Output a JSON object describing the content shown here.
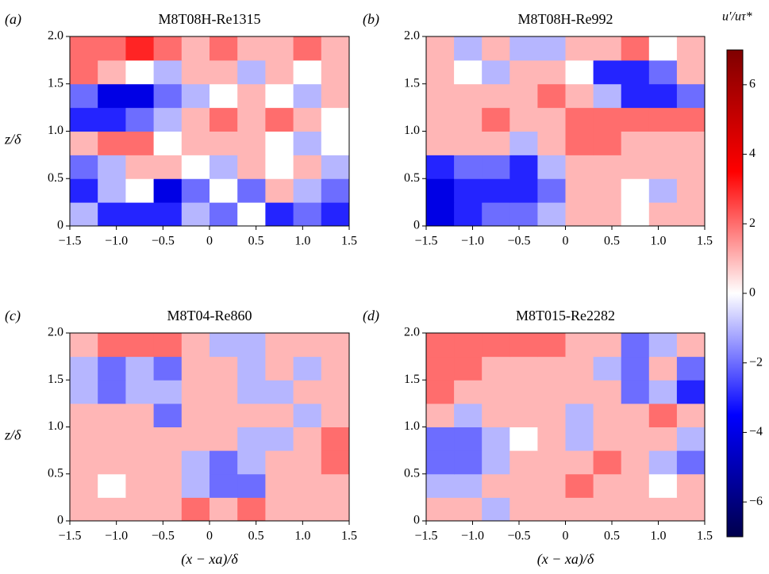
{
  "chart_data": [
    {
      "type": "heatmap",
      "panel": "(a)",
      "title": "M8T08H-Re1315",
      "ylabel": "z/δ",
      "x": [
        -1.35,
        -1.05,
        -0.75,
        -0.45,
        -0.15,
        0.15,
        0.45,
        0.75,
        1.05,
        1.35
      ],
      "y": [
        0.125,
        0.375,
        0.625,
        0.875,
        1.125,
        1.375,
        1.625,
        1.875
      ],
      "z": [
        [
          -1,
          -3,
          -3,
          -3,
          -1,
          -2,
          0,
          -3,
          -2,
          -3
        ],
        [
          -3,
          -1,
          0,
          -4,
          -2,
          0,
          -2,
          1,
          -1,
          -2
        ],
        [
          -2,
          -1,
          1,
          1,
          0,
          -1,
          1,
          0,
          1,
          -1
        ],
        [
          1,
          2,
          2,
          0,
          1,
          1,
          1,
          0,
          -1,
          0
        ],
        [
          -3,
          -3,
          -2,
          -1,
          1,
          2,
          1,
          2,
          1,
          0
        ],
        [
          -2,
          -4,
          -4,
          -2,
          -1,
          0,
          1,
          0,
          -1,
          1
        ],
        [
          2,
          1,
          0,
          -1,
          1,
          1,
          -1,
          1,
          0,
          1
        ],
        [
          2,
          2,
          3,
          2,
          1,
          2,
          1,
          1,
          2,
          1
        ]
      ],
      "xlim": [
        -1.5,
        1.5
      ],
      "ylim": [
        0,
        2
      ],
      "xticks": [
        {
          "value": -1.5,
          "label": "−1.5"
        },
        {
          "value": -1,
          "label": "−1.0"
        },
        {
          "value": -0.5,
          "label": "−0.5"
        },
        0,
        0.5,
        {
          "value": 1,
          "label": "1.0"
        },
        1.5
      ],
      "yticks": [
        0,
        0.5,
        {
          "value": 1,
          "label": "1.0"
        },
        1.5,
        {
          "value": 2,
          "label": "2.0"
        }
      ]
    },
    {
      "type": "heatmap",
      "panel": "(b)",
      "title": "M8T08H-Re992",
      "x": [
        -1.35,
        -1.05,
        -0.75,
        -0.45,
        -0.15,
        0.15,
        0.45,
        0.75,
        1.05,
        1.35
      ],
      "y": [
        0.125,
        0.375,
        0.625,
        0.875,
        1.125,
        1.375,
        1.625,
        1.875
      ],
      "z": [
        [
          -4,
          -3,
          -2,
          -2,
          -1,
          1,
          1,
          0,
          1,
          1
        ],
        [
          -4,
          -3,
          -3,
          -3,
          -2,
          1,
          1,
          0,
          -1,
          1
        ],
        [
          -3,
          -2,
          -2,
          -3,
          -1,
          1,
          1,
          1,
          1,
          1
        ],
        [
          1,
          1,
          1,
          -1,
          1,
          2,
          2,
          1,
          1,
          1
        ],
        [
          1,
          1,
          2,
          1,
          1,
          2,
          2,
          2,
          2,
          2
        ],
        [
          1,
          1,
          1,
          1,
          2,
          1,
          -1,
          -3,
          -3,
          -2
        ],
        [
          1,
          0,
          -1,
          1,
          1,
          0,
          -3,
          -3,
          -2,
          1
        ],
        [
          1,
          -1,
          1,
          -1,
          -1,
          1,
          1,
          2,
          0,
          1
        ]
      ],
      "xlim": [
        -1.5,
        1.5
      ],
      "ylim": [
        0,
        2
      ],
      "xticks": [
        {
          "value": -1.5,
          "label": "−1.5"
        },
        {
          "value": -1,
          "label": "−1.0"
        },
        {
          "value": -0.5,
          "label": "−0.5"
        },
        0,
        0.5,
        {
          "value": 1,
          "label": "1.0"
        },
        1.5
      ],
      "yticks": [
        0,
        0.5,
        {
          "value": 1,
          "label": "1.0"
        },
        1.5,
        {
          "value": 2,
          "label": "2.0"
        }
      ]
    },
    {
      "type": "heatmap",
      "panel": "(c)",
      "title": "M8T04-Re860",
      "ylabel": "z/δ",
      "xlabel": "(x − xa)/δ",
      "x": [
        -1.35,
        -1.05,
        -0.75,
        -0.45,
        -0.15,
        0.15,
        0.45,
        0.75,
        1.05,
        1.35
      ],
      "y": [
        0.125,
        0.375,
        0.625,
        0.875,
        1.125,
        1.375,
        1.625,
        1.875
      ],
      "z": [
        [
          1,
          1,
          1,
          1,
          2,
          1,
          2,
          1,
          1,
          1
        ],
        [
          1,
          0,
          1,
          1,
          -1,
          -2,
          -2,
          1,
          1,
          1
        ],
        [
          1,
          1,
          1,
          1,
          -1,
          -2,
          -1,
          1,
          1,
          2
        ],
        [
          1,
          1,
          1,
          1,
          1,
          1,
          -1,
          -1,
          1,
          2
        ],
        [
          1,
          1,
          1,
          -2,
          1,
          1,
          1,
          1,
          -1,
          1
        ],
        [
          -1,
          -2,
          -1,
          -1,
          1,
          1,
          -1,
          -1,
          1,
          1
        ],
        [
          -1,
          -2,
          -1,
          -2,
          1,
          1,
          -1,
          1,
          -1,
          1
        ],
        [
          1,
          2,
          2,
          2,
          1,
          -1,
          -1,
          1,
          1,
          1
        ]
      ],
      "xlim": [
        -1.5,
        1.5
      ],
      "ylim": [
        0,
        2
      ],
      "xticks": [
        {
          "value": -1.5,
          "label": "−1.5"
        },
        {
          "value": -1,
          "label": "−1.0"
        },
        {
          "value": -0.5,
          "label": "−0.5"
        },
        0,
        0.5,
        {
          "value": 1,
          "label": "1.0"
        },
        1.5
      ],
      "yticks": [
        0,
        0.5,
        {
          "value": 1,
          "label": "1.0"
        },
        1.5,
        {
          "value": 2,
          "label": "2.0"
        }
      ]
    },
    {
      "type": "heatmap",
      "panel": "(d)",
      "title": "M8T015-Re2282",
      "xlabel": "(x − xa)/δ",
      "x": [
        -1.35,
        -1.05,
        -0.75,
        -0.45,
        -0.15,
        0.15,
        0.45,
        0.75,
        1.05,
        1.35
      ],
      "y": [
        0.125,
        0.375,
        0.625,
        0.875,
        1.125,
        1.375,
        1.625,
        1.875
      ],
      "z": [
        [
          1,
          1,
          -1,
          1,
          1,
          1,
          1,
          1,
          1,
          1
        ],
        [
          -1,
          -1,
          1,
          1,
          1,
          2,
          1,
          1,
          0,
          1
        ],
        [
          -2,
          -2,
          -1,
          1,
          1,
          1,
          2,
          1,
          -1,
          -2
        ],
        [
          -2,
          -2,
          -1,
          0,
          1,
          -1,
          1,
          1,
          1,
          -1
        ],
        [
          1,
          -1,
          1,
          1,
          1,
          -1,
          1,
          1,
          2,
          1
        ],
        [
          2,
          1,
          1,
          1,
          1,
          1,
          1,
          -2,
          -1,
          -3
        ],
        [
          2,
          2,
          1,
          1,
          1,
          1,
          -1,
          -2,
          1,
          -2
        ],
        [
          2,
          2,
          2,
          2,
          2,
          1,
          1,
          -2,
          -1,
          1
        ]
      ],
      "xlim": [
        -1.5,
        1.5
      ],
      "ylim": [
        0,
        2
      ],
      "xticks": [
        {
          "value": -1.5,
          "label": "−1.5"
        },
        {
          "value": -1,
          "label": "−1.0"
        },
        {
          "value": -0.5,
          "label": "−0.5"
        },
        0,
        0.5,
        {
          "value": 1,
          "label": "1.0"
        },
        1.5
      ],
      "yticks": [
        0,
        0.5,
        {
          "value": 1,
          "label": "1.0"
        },
        1.5,
        {
          "value": 2,
          "label": "2.0"
        }
      ]
    }
  ],
  "colorbar": {
    "label": "u′/uτ*",
    "clim": [
      -7,
      7
    ],
    "colors": [
      "#00004c",
      "#0000ff",
      "#ffffff",
      "#ff0000",
      "#7f0000"
    ],
    "ticks": [
      {
        "value": -6,
        "label": "−6"
      },
      {
        "value": -4,
        "label": "−4"
      },
      {
        "value": -2,
        "label": "−2"
      },
      0,
      2,
      4,
      6
    ]
  }
}
